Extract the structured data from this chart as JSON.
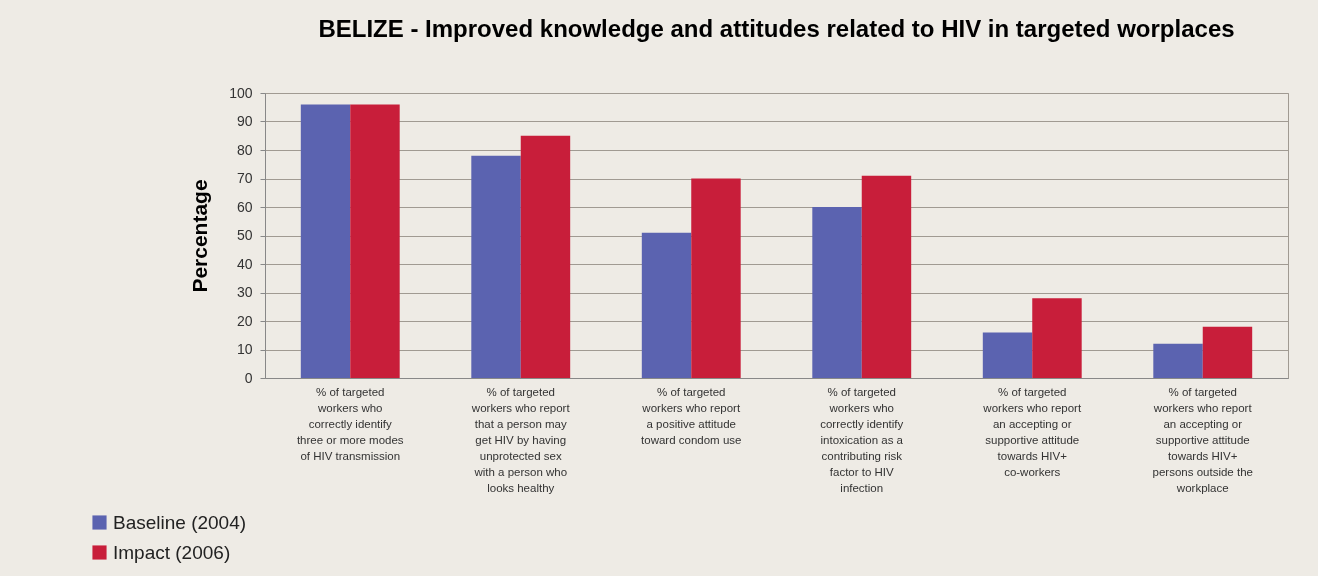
{
  "chart_data": {
    "type": "bar",
    "title": "BELIZE - Improved knowledge and attitudes related to HIV in targeted worplaces",
    "ylabel": "Percentage",
    "categories": [
      "% of targeted workers who correctly identify three or more modes of HIV transmission",
      "% of targeted workers who report that a person may get HIV by having unprotected sex with a person who looks healthy",
      "% of targeted workers who report a positive attitude toward condom  use",
      "% of targeted workers who correctly identify intoxication as a contributing risk factor to HIV infection",
      "% of targeted workers who report an accepting or supportive attitude towards HIV+ co-workers",
      "% of targeted workers who report an accepting or supportive attitude towards HIV+ persons outside the workplace"
    ],
    "series": [
      {
        "name": "Baseline (2004)",
        "color": "#5b63b0",
        "values": [
          96,
          78,
          51,
          60,
          16,
          12
        ]
      },
      {
        "name": "Impact (2006)",
        "color": "#c81e3a",
        "values": [
          96,
          85,
          70,
          71,
          28,
          18
        ]
      }
    ],
    "ylim": [
      0,
      100
    ],
    "yticks": [
      0,
      10,
      20,
      30,
      40,
      50,
      60,
      70,
      80,
      90,
      100
    ],
    "grid": "y",
    "legend": "bottom left"
  }
}
